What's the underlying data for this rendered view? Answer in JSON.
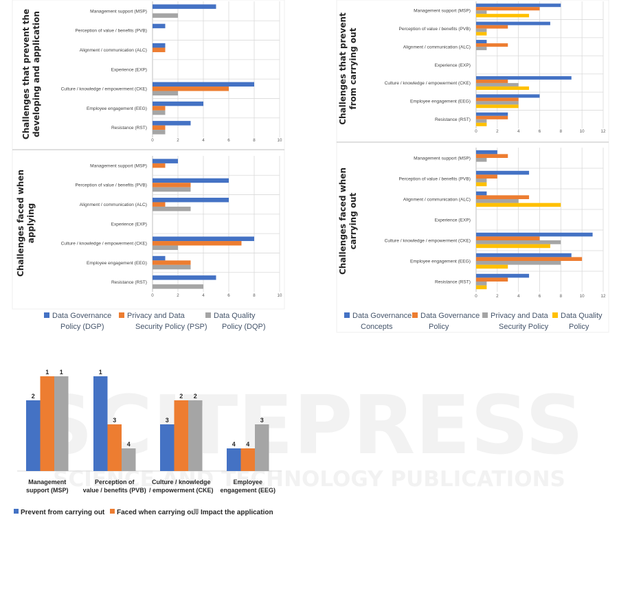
{
  "colors": {
    "blue": "#4472c4",
    "orange": "#ed7d31",
    "gray": "#a5a5a5",
    "yellow": "#ffc000",
    "grid": "#d9d9d9"
  },
  "watermark": {
    "main": "SCITEPRESS",
    "sub": "SCIENCE AND TECHNOLOGY PUBLICATIONS"
  },
  "legends": {
    "left": [
      "Data Governance Policy (DGP)",
      "Privacy and Data Security Policy (PSP)",
      "Data Quality Policy (DQP)"
    ],
    "right": [
      "Data Governance Concepts",
      "Data Governance Policy",
      "Privacy and Data Security Policy",
      "Data Quality Policy"
    ],
    "bottom": [
      "Prevent from carrying out",
      "Faced when carrying out",
      "Impact the application"
    ]
  },
  "chart_data": [
    {
      "type": "bar",
      "orientation": "horizontal",
      "title": "Challenges that prevent the developing and application",
      "categories": [
        "Management support (MSP)",
        "Perception of value / benefits (PVB)",
        "Alignment / communication (ALC)",
        "Experience (EXP)",
        "Culture / knowledge / empowerment (CKE)",
        "Employee engagement (EEG)",
        "Resistance (RST)"
      ],
      "series": [
        {
          "name": "Data Governance Policy (DGP)",
          "values": [
            5,
            1,
            1,
            0,
            8,
            4,
            3
          ]
        },
        {
          "name": "Privacy and Data Security Policy (PSP)",
          "values": [
            0,
            0,
            1,
            0,
            6,
            1,
            1
          ]
        },
        {
          "name": "Data Quality Policy (DQP)",
          "values": [
            2,
            0,
            0,
            0,
            2,
            1,
            1
          ]
        }
      ],
      "xlim": [
        0,
        10
      ],
      "xticks": [
        0,
        2,
        4,
        6,
        8,
        10
      ],
      "grid": true
    },
    {
      "type": "bar",
      "orientation": "horizontal",
      "title": "Challenges faced when applying",
      "categories": [
        "Management support (MSP)",
        "Perception of value / benefits (PVB)",
        "Alignment / communication (ALC)",
        "Experience (EXP)",
        "Culture / knowledge / empowerment (CKE)",
        "Employee engagement (EEG)",
        "Resistance (RST)"
      ],
      "series": [
        {
          "name": "Data Governance Policy (DGP)",
          "values": [
            2,
            6,
            6,
            0,
            8,
            1,
            5
          ]
        },
        {
          "name": "Privacy and Data Security Policy (PSP)",
          "values": [
            1,
            3,
            1,
            0,
            7,
            3,
            0
          ]
        },
        {
          "name": "Data Quality Policy (DQP)",
          "values": [
            0,
            3,
            3,
            0,
            2,
            3,
            4
          ]
        }
      ],
      "xlim": [
        0,
        10
      ],
      "xticks": [
        0,
        2,
        4,
        6,
        8,
        10
      ],
      "grid": true
    },
    {
      "type": "bar",
      "orientation": "horizontal",
      "title": "Challenges that prevent from carrying out",
      "categories": [
        "Management support (MSP)",
        "Perception of value / benefits (PVB)",
        "Alignment / communication (ALC)",
        "Experience (EXP)",
        "Culture / knowledge / empowerment (CKE)",
        "Employee engagement (EEG)",
        "Resistance (RST)"
      ],
      "series": [
        {
          "name": "Data Governance Concepts",
          "values": [
            8,
            7,
            1,
            0,
            9,
            6,
            3
          ]
        },
        {
          "name": "Data Governance Policy",
          "values": [
            6,
            3,
            3,
            0,
            3,
            4,
            3
          ]
        },
        {
          "name": "Privacy and Data Security Policy",
          "values": [
            1,
            1,
            1,
            0,
            4,
            4,
            1
          ]
        },
        {
          "name": "Data Quality Policy",
          "values": [
            5,
            1,
            0,
            0,
            5,
            4,
            1
          ]
        }
      ],
      "xlim": [
        0,
        12
      ],
      "xticks": [
        0,
        2,
        4,
        6,
        8,
        10,
        12
      ],
      "grid": true
    },
    {
      "type": "bar",
      "orientation": "horizontal",
      "title": "Challenges faced when carrying out",
      "categories": [
        "Management support (MSP)",
        "Perception of value / benefits (PVB)",
        "Alignment / communication (ALC)",
        "Experience (EXP)",
        "Culture / knowledge / empowerment (CKE)",
        "Employee engagement (EEG)",
        "Resistance (RST)"
      ],
      "series": [
        {
          "name": "Data Governance Concepts",
          "values": [
            2,
            5,
            1,
            0,
            11,
            9,
            5
          ]
        },
        {
          "name": "Data Governance Policy",
          "values": [
            3,
            2,
            5,
            0,
            6,
            10,
            3
          ]
        },
        {
          "name": "Privacy and Data Security Policy",
          "values": [
            1,
            1,
            4,
            0,
            8,
            8,
            1
          ]
        },
        {
          "name": "Data Quality Policy",
          "values": [
            0,
            1,
            8,
            0,
            7,
            3,
            1
          ]
        }
      ],
      "xlim": [
        0,
        12
      ],
      "xticks": [
        0,
        2,
        4,
        6,
        8,
        10,
        12
      ],
      "grid": true
    },
    {
      "type": "bar",
      "orientation": "vertical",
      "categories": [
        "Management support (MSP)",
        "Perception of value / benefits (PVB)",
        "Culture / knowledge / empowerment (CKE)",
        "Employee engagement (EEG)"
      ],
      "series": [
        {
          "name": "Prevent from carrying out",
          "values": [
            2,
            1,
            3,
            4
          ]
        },
        {
          "name": "Faced when carrying out",
          "values": [
            1,
            3,
            2,
            4
          ]
        },
        {
          "name": "Impact the application",
          "values": [
            1,
            4,
            2,
            3
          ]
        }
      ],
      "note": "values are ranks; rank 1 = tallest bar"
    }
  ]
}
